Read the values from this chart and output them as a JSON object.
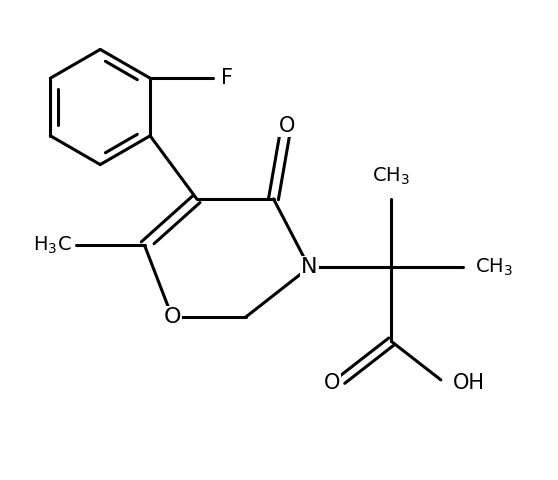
{
  "background_color": "#ffffff",
  "line_color": "#000000",
  "line_width": 2.2,
  "font_size": 14,
  "figsize": [
    5.58,
    4.8
  ],
  "dpi": 100,
  "xlim": [
    0,
    10
  ],
  "ylim": [
    0,
    8.6
  ]
}
